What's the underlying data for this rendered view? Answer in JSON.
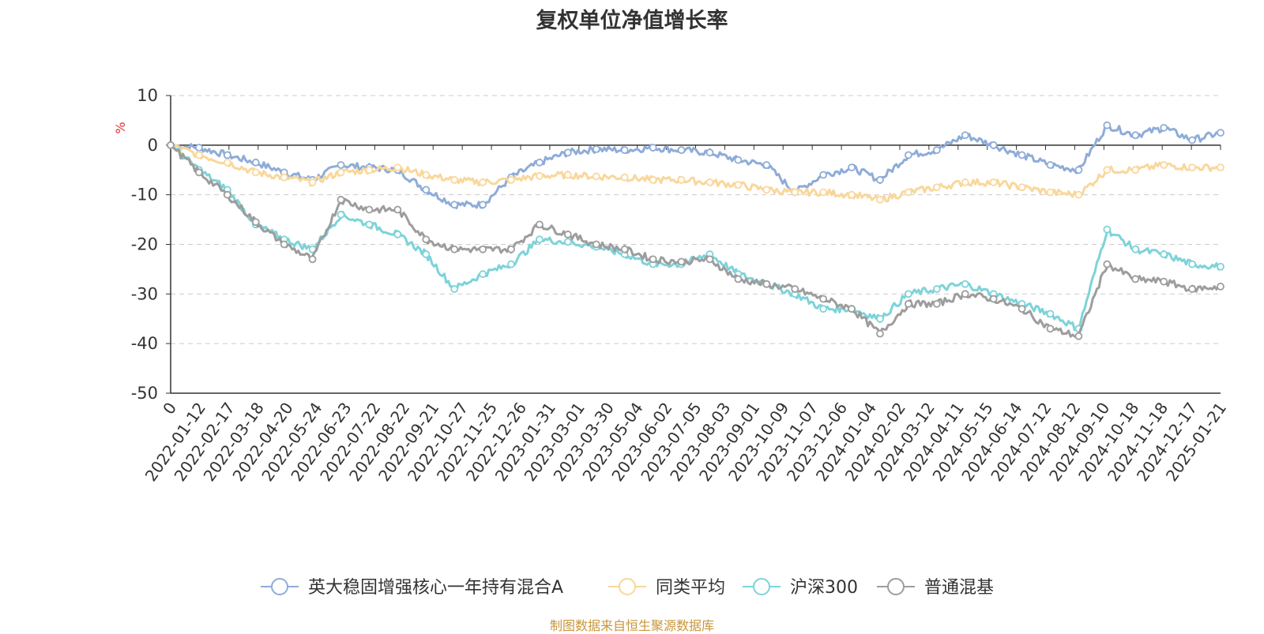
{
  "chart_data": {
    "type": "line",
    "title": "复权单位净值增长率",
    "ylabel": "%",
    "ylim": [
      -50,
      10
    ],
    "yticks": [
      10,
      0,
      -10,
      -20,
      -30,
      -40,
      -50
    ],
    "xticks": [
      "0",
      "2022-01-12",
      "2022-02-17",
      "2022-03-18",
      "2022-04-20",
      "2022-05-24",
      "2022-06-23",
      "2022-07-22",
      "2022-08-22",
      "2022-09-21",
      "2022-10-27",
      "2022-11-25",
      "2022-12-26",
      "2023-01-31",
      "2023-03-01",
      "2023-03-30",
      "2023-05-04",
      "2023-06-02",
      "2023-07-05",
      "2023-08-03",
      "2023-09-01",
      "2023-10-09",
      "2023-11-07",
      "2023-12-06",
      "2024-01-04",
      "2024-02-02",
      "2024-03-12",
      "2024-04-11",
      "2024-05-15",
      "2024-06-14",
      "2024-07-12",
      "2024-08-12",
      "2024-09-10",
      "2024-10-18",
      "2024-11-18",
      "2024-12-17",
      "2025-01-21"
    ],
    "grid": true,
    "legend_position": "bottom",
    "series": [
      {
        "name": "英大稳固增强核心一年持有混合A",
        "color": "#8eacd8",
        "values": [
          0,
          -0.5,
          -2,
          -3.5,
          -5.5,
          -7,
          -4,
          -4.5,
          -5,
          -9,
          -12,
          -12,
          -6.5,
          -3.5,
          -1.5,
          -0.8,
          -1,
          -0.5,
          -1,
          -1.5,
          -3,
          -4,
          -9.5,
          -6,
          -4.5,
          -7,
          -2,
          -1,
          2,
          0,
          -2,
          -4,
          -5,
          4,
          2,
          3.5,
          1,
          2.5
        ]
      },
      {
        "name": "同类平均",
        "color": "#f9d79b",
        "values": [
          0,
          -2,
          -3.5,
          -5.5,
          -6.5,
          -7.5,
          -5.5,
          -5,
          -4.5,
          -6,
          -7,
          -7.5,
          -7,
          -6.2,
          -6,
          -6.3,
          -6.5,
          -7,
          -7,
          -7.5,
          -8,
          -9,
          -9.5,
          -9.5,
          -10,
          -11,
          -9.5,
          -8.5,
          -7.5,
          -7.5,
          -8.5,
          -9.5,
          -10,
          -5,
          -5,
          -4,
          -4.5,
          -4.5
        ]
      },
      {
        "name": "沪深300",
        "color": "#7dd3d9",
        "values": [
          0,
          -5,
          -9,
          -16,
          -19,
          -21,
          -14,
          -16,
          -18,
          -22,
          -29,
          -26,
          -24,
          -19,
          -19.5,
          -20.5,
          -22,
          -24,
          -24,
          -22,
          -26,
          -28,
          -30,
          -33,
          -33,
          -35,
          -30,
          -29,
          -28,
          -30,
          -32,
          -34,
          -37,
          -17,
          -21,
          -22,
          -24,
          -24.5
        ]
      },
      {
        "name": "普通混基",
        "color": "#9d9d9d",
        "values": [
          0,
          -5.5,
          -10,
          -15.5,
          -20,
          -23,
          -11,
          -13,
          -13,
          -19,
          -21,
          -21,
          -21,
          -16,
          -18,
          -20,
          -21,
          -23,
          -23.5,
          -23,
          -27,
          -28,
          -29,
          -31,
          -33,
          -38,
          -32,
          -32,
          -30,
          -31,
          -33,
          -37,
          -38.5,
          -24,
          -27,
          -27.5,
          -29,
          -28.5
        ]
      }
    ]
  },
  "footer": "制图数据来自恒生聚源数据库"
}
